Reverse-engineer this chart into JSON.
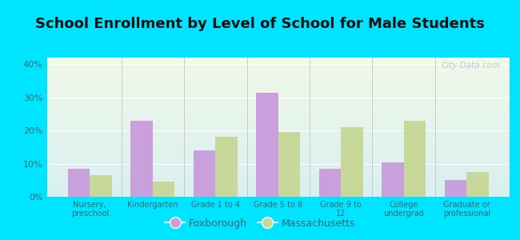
{
  "title": "School Enrollment by Level of School for Male Students",
  "categories": [
    "Nursery,\npreschool",
    "Kindergarten",
    "Grade 1 to 4",
    "Grade 5 to 8",
    "Grade 9 to\n12",
    "College\nundergrad",
    "Graduate or\nprofessional"
  ],
  "foxborough": [
    8.5,
    23.0,
    14.0,
    31.5,
    8.5,
    10.5,
    5.0
  ],
  "massachusetts": [
    6.5,
    4.5,
    18.0,
    19.5,
    21.0,
    23.0,
    7.5
  ],
  "fox_color": "#c9a0dc",
  "mass_color": "#c8d89a",
  "background_outer": "#00e5ff",
  "background_inner_top": "#f0f8e8",
  "background_inner_bottom": "#d8eff0",
  "ylim": [
    0,
    42
  ],
  "yticks": [
    0,
    10,
    20,
    30,
    40
  ],
  "ytick_labels": [
    "0%",
    "10%",
    "20%",
    "30%",
    "40%"
  ],
  "legend_fox": "Foxborough",
  "legend_mass": "Massachusetts",
  "title_fontsize": 13,
  "bar_width": 0.35,
  "text_color": "#336677",
  "title_color": "#111111"
}
